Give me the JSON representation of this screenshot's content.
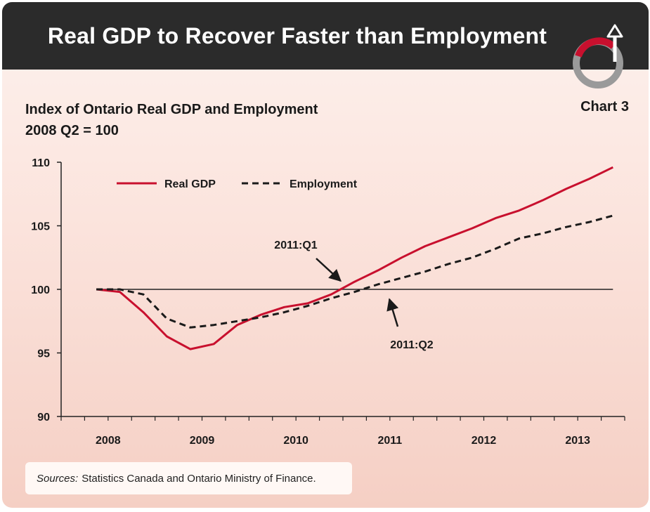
{
  "header": {
    "title": "Real GDP to Recover Faster than Employment"
  },
  "subtitle": {
    "line1": "Index of Ontario Real GDP and Employment",
    "line2": "2008 Q2 = 100"
  },
  "chart_label": "Chart 3",
  "sources": {
    "label": "Sources:",
    "text": "Statistics Canada and Ontario Ministry of Finance."
  },
  "colors": {
    "gdp": "#c8102e",
    "employment": "#1a1a1a",
    "header": "#2b2b2b"
  },
  "chart_data": {
    "type": "line",
    "title": "Index of Ontario Real GDP and Employment",
    "subtitle": "2008 Q2 = 100",
    "x_ticks": [
      "2008",
      "2009",
      "2010",
      "2011",
      "2012",
      "2013"
    ],
    "y_ticks": [
      90,
      95,
      100,
      105,
      110
    ],
    "ylim": [
      90,
      110
    ],
    "x_range": [
      "2008 Q2",
      "2013 Q4"
    ],
    "x_unit": "quarter",
    "reference_line": 100,
    "legend": "top-left",
    "series": [
      {
        "name": "Real GDP",
        "style": "solid",
        "quarters": [
          "2008 Q2",
          "2008 Q3",
          "2008 Q4",
          "2009 Q1",
          "2009 Q2",
          "2009 Q3",
          "2009 Q4",
          "2010 Q1",
          "2010 Q2",
          "2010 Q3",
          "2010 Q4",
          "2011 Q1",
          "2011 Q2",
          "2011 Q3",
          "2011 Q4",
          "2012 Q1",
          "2012 Q2",
          "2012 Q3",
          "2012 Q4",
          "2013 Q1",
          "2013 Q2",
          "2013 Q3",
          "2013 Q4"
        ],
        "values": [
          100.0,
          99.8,
          98.2,
          96.3,
          95.3,
          95.7,
          97.2,
          98.0,
          98.6,
          98.9,
          99.6,
          100.6,
          101.5,
          102.5,
          103.4,
          104.1,
          104.8,
          105.6,
          106.2,
          107.0,
          107.9,
          108.7,
          109.6
        ]
      },
      {
        "name": "Employment",
        "style": "dashed",
        "quarters": [
          "2008 Q2",
          "2008 Q3",
          "2008 Q4",
          "2009 Q1",
          "2009 Q2",
          "2009 Q3",
          "2009 Q4",
          "2010 Q1",
          "2010 Q2",
          "2010 Q3",
          "2010 Q4",
          "2011 Q1",
          "2011 Q2",
          "2011 Q3",
          "2011 Q4",
          "2012 Q1",
          "2012 Q2",
          "2012 Q3",
          "2012 Q4",
          "2013 Q1",
          "2013 Q2",
          "2013 Q3",
          "2013 Q4"
        ],
        "values": [
          100.0,
          100.0,
          99.6,
          97.7,
          97.0,
          97.2,
          97.5,
          97.8,
          98.2,
          98.7,
          99.3,
          99.8,
          100.4,
          100.9,
          101.4,
          102.0,
          102.5,
          103.2,
          104.0,
          104.4,
          104.9,
          105.3,
          105.8
        ]
      }
    ],
    "annotations": [
      {
        "text": "2011:Q1",
        "points_to": "2011 Q1",
        "series": "Real GDP"
      },
      {
        "text": "2011:Q2",
        "points_to": "2011 Q2",
        "series": "Employment"
      }
    ]
  }
}
